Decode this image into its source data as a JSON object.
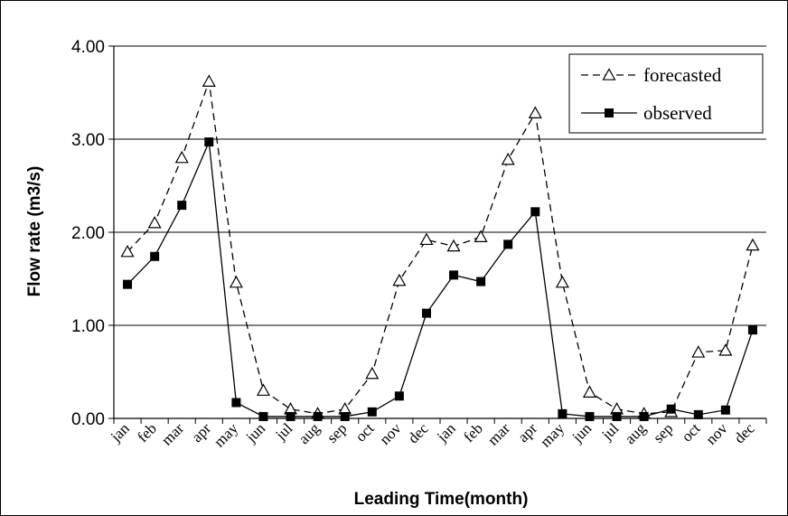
{
  "chart_data": {
    "type": "line",
    "xlabel": "Leading Time(month)",
    "ylabel": "Flow rate (m3/s)",
    "ylim": [
      0,
      4
    ],
    "yticks": [
      "0.00",
      "1.00",
      "2.00",
      "3.00",
      "4.00"
    ],
    "categories": [
      "jan",
      "feb",
      "mar",
      "apr",
      "may",
      "jun",
      "jul",
      "aug",
      "sep",
      "oct",
      "nov",
      "dec",
      "jan",
      "feb",
      "mar",
      "apr",
      "may",
      "jun",
      "jul",
      "aug",
      "sep",
      "oct",
      "nov",
      "dec"
    ],
    "grid": "horizontal",
    "legend": "top-right",
    "series": [
      {
        "name": "forecasted",
        "style": "dashed",
        "marker": "open-triangle",
        "color": "#000000",
        "values": [
          1.79,
          2.1,
          2.8,
          3.62,
          1.46,
          0.3,
          0.1,
          0.05,
          0.1,
          0.48,
          1.48,
          1.92,
          1.85,
          1.95,
          2.78,
          3.28,
          1.46,
          0.28,
          0.1,
          0.05,
          0.07,
          0.71,
          0.73,
          1.86
        ]
      },
      {
        "name": "observed",
        "style": "solid",
        "marker": "filled-square",
        "color": "#000000",
        "values": [
          1.44,
          1.74,
          2.29,
          2.97,
          0.17,
          0.02,
          0.02,
          0.02,
          0.02,
          0.07,
          0.24,
          1.13,
          1.54,
          1.47,
          1.87,
          2.22,
          0.05,
          0.02,
          0.02,
          0.02,
          0.1,
          0.04,
          0.09,
          0.95
        ]
      }
    ]
  }
}
